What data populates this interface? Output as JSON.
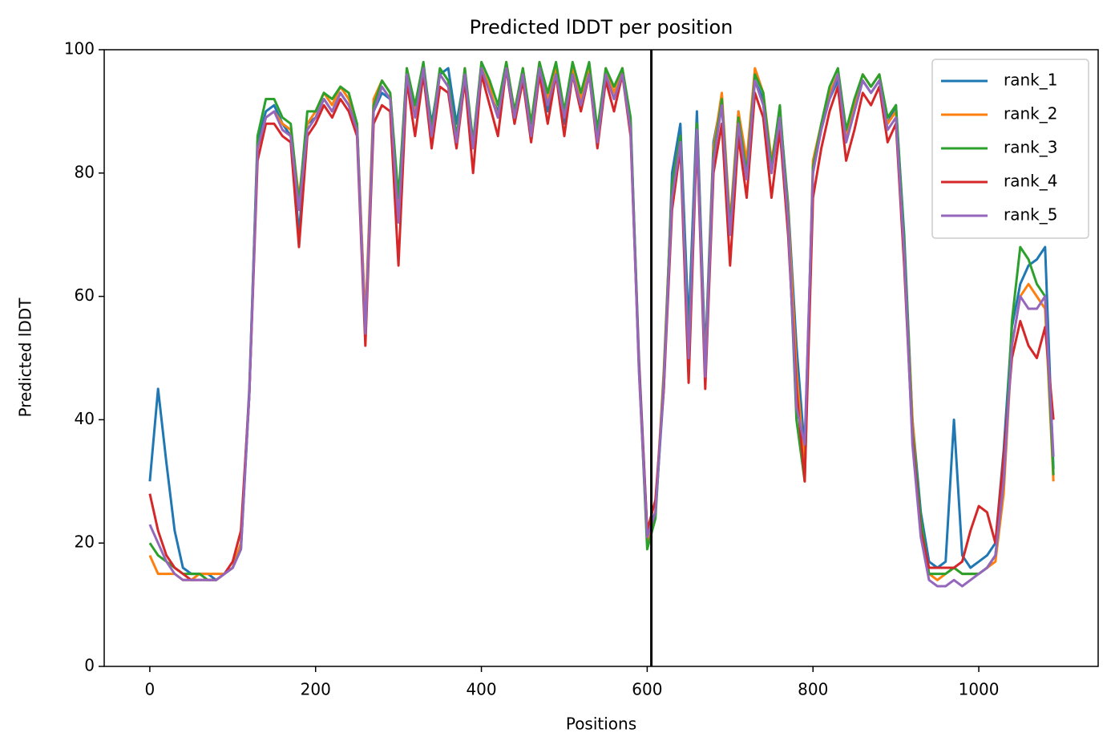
{
  "chart_data": {
    "type": "line",
    "title": "Predicted lDDT per position",
    "xlabel": "Positions",
    "ylabel": "Predicted lDDT",
    "x": [
      0,
      10,
      20,
      30,
      40,
      50,
      60,
      70,
      80,
      90,
      100,
      110,
      120,
      130,
      140,
      150,
      160,
      170,
      180,
      190,
      200,
      210,
      220,
      230,
      240,
      250,
      260,
      270,
      280,
      290,
      300,
      310,
      320,
      330,
      340,
      350,
      360,
      370,
      380,
      390,
      400,
      410,
      420,
      430,
      440,
      450,
      460,
      470,
      480,
      490,
      500,
      510,
      520,
      530,
      540,
      550,
      560,
      570,
      580,
      590,
      600,
      610,
      620,
      630,
      640,
      650,
      660,
      670,
      680,
      690,
      700,
      710,
      720,
      730,
      740,
      750,
      760,
      770,
      780,
      790,
      800,
      810,
      820,
      830,
      840,
      850,
      860,
      870,
      880,
      890,
      900,
      910,
      920,
      930,
      940,
      950,
      960,
      970,
      980,
      990,
      1000,
      1010,
      1020,
      1030,
      1040,
      1050,
      1060,
      1070,
      1080,
      1090
    ],
    "series": [
      {
        "name": "rank_1",
        "color": "#1f77b4",
        "values": [
          30,
          45,
          33,
          22,
          16,
          15,
          15,
          15,
          14,
          15,
          16,
          20,
          45,
          85,
          90,
          91,
          88,
          86,
          70,
          88,
          89,
          92,
          90,
          93,
          91,
          88,
          55,
          90,
          93,
          92,
          72,
          96,
          90,
          97,
          88,
          96,
          97,
          88,
          96,
          85,
          97,
          93,
          90,
          97,
          88,
          96,
          86,
          97,
          90,
          97,
          88,
          96,
          91,
          97,
          85,
          96,
          92,
          97,
          88,
          50,
          22,
          25,
          45,
          80,
          88,
          55,
          90,
          50,
          85,
          92,
          70,
          90,
          80,
          95,
          92,
          80,
          90,
          75,
          52,
          35,
          80,
          88,
          92,
          95,
          85,
          90,
          95,
          93,
          95,
          88,
          91,
          70,
          40,
          25,
          17,
          16,
          17,
          40,
          18,
          16,
          17,
          18,
          20,
          35,
          55,
          62,
          65,
          66,
          68,
          32
        ]
      },
      {
        "name": "rank_2",
        "color": "#ff7f0e",
        "values": [
          18,
          15,
          15,
          15,
          14,
          14,
          15,
          15,
          15,
          15,
          16,
          20,
          44,
          84,
          89,
          90,
          88,
          87,
          76,
          88,
          90,
          93,
          91,
          94,
          92,
          88,
          56,
          92,
          95,
          93,
          75,
          97,
          90,
          97,
          86,
          96,
          94,
          85,
          97,
          84,
          97,
          94,
          89,
          98,
          90,
          97,
          88,
          98,
          92,
          97,
          90,
          97,
          92,
          97,
          86,
          97,
          93,
          97,
          88,
          48,
          20,
          25,
          48,
          78,
          86,
          50,
          88,
          48,
          84,
          93,
          72,
          90,
          82,
          97,
          93,
          82,
          90,
          74,
          48,
          32,
          82,
          88,
          93,
          96,
          86,
          91,
          96,
          94,
          96,
          88,
          90,
          68,
          40,
          22,
          15,
          14,
          15,
          16,
          15,
          15,
          15,
          16,
          17,
          28,
          52,
          60,
          62,
          60,
          58,
          30
        ]
      },
      {
        "name": "rank_3",
        "color": "#2ca02c",
        "values": [
          20,
          18,
          17,
          16,
          15,
          15,
          15,
          14,
          14,
          15,
          16,
          19,
          44,
          86,
          92,
          92,
          89,
          88,
          75,
          90,
          90,
          93,
          92,
          94,
          93,
          88,
          53,
          91,
          95,
          93,
          76,
          97,
          91,
          98,
          87,
          97,
          95,
          86,
          97,
          85,
          98,
          95,
          91,
          98,
          90,
          97,
          88,
          98,
          93,
          98,
          90,
          98,
          93,
          98,
          87,
          97,
          94,
          97,
          89,
          49,
          19,
          24,
          47,
          78,
          86,
          51,
          88,
          47,
          83,
          92,
          71,
          89,
          80,
          96,
          93,
          81,
          91,
          73,
          40,
          30,
          81,
          88,
          94,
          97,
          87,
          92,
          96,
          94,
          96,
          89,
          91,
          69,
          38,
          24,
          15,
          15,
          15,
          16,
          15,
          15,
          15,
          16,
          18,
          30,
          56,
          68,
          66,
          62,
          60,
          31
        ]
      },
      {
        "name": "rank_4",
        "color": "#d62728",
        "values": [
          28,
          22,
          18,
          16,
          15,
          14,
          14,
          14,
          14,
          15,
          17,
          22,
          44,
          82,
          88,
          88,
          86,
          85,
          68,
          86,
          88,
          91,
          89,
          92,
          90,
          86,
          52,
          88,
          91,
          90,
          65,
          95,
          86,
          96,
          84,
          94,
          93,
          84,
          95,
          80,
          96,
          91,
          86,
          97,
          88,
          95,
          85,
          96,
          88,
          96,
          86,
          96,
          90,
          96,
          84,
          95,
          90,
          96,
          86,
          49,
          22,
          27,
          45,
          74,
          84,
          46,
          86,
          45,
          80,
          88,
          65,
          86,
          76,
          93,
          89,
          76,
          87,
          70,
          45,
          30,
          76,
          84,
          90,
          94,
          82,
          87,
          93,
          91,
          94,
          85,
          88,
          65,
          37,
          22,
          16,
          16,
          16,
          16,
          17,
          22,
          26,
          25,
          20,
          34,
          50,
          56,
          52,
          50,
          55,
          40
        ]
      },
      {
        "name": "rank_5",
        "color": "#9467bd",
        "values": [
          23,
          20,
          17,
          15,
          14,
          14,
          14,
          14,
          14,
          15,
          16,
          19,
          44,
          84,
          89,
          90,
          87,
          86,
          74,
          87,
          89,
          92,
          90,
          93,
          91,
          87,
          54,
          90,
          94,
          92,
          72,
          96,
          89,
          97,
          86,
          96,
          94,
          85,
          96,
          84,
          97,
          93,
          89,
          97,
          89,
          96,
          86,
          97,
          91,
          96,
          89,
          96,
          91,
          96,
          85,
          96,
          92,
          96,
          87,
          48,
          21,
          25,
          46,
          76,
          85,
          50,
          87,
          47,
          82,
          91,
          70,
          88,
          79,
          95,
          91,
          80,
          89,
          72,
          42,
          36,
          80,
          87,
          92,
          96,
          85,
          90,
          95,
          93,
          95,
          87,
          89,
          67,
          36,
          21,
          14,
          13,
          13,
          14,
          13,
          14,
          15,
          16,
          18,
          30,
          52,
          60,
          58,
          58,
          60,
          34
        ]
      }
    ],
    "vlines": [
      605
    ],
    "vline_color": "#000000",
    "xlim": [
      -55,
      1144
    ],
    "ylim": [
      0,
      100
    ],
    "xticks": [
      0,
      200,
      400,
      600,
      800,
      1000
    ],
    "yticks": [
      0,
      20,
      40,
      60,
      80,
      100
    ],
    "legend": "upper right"
  }
}
